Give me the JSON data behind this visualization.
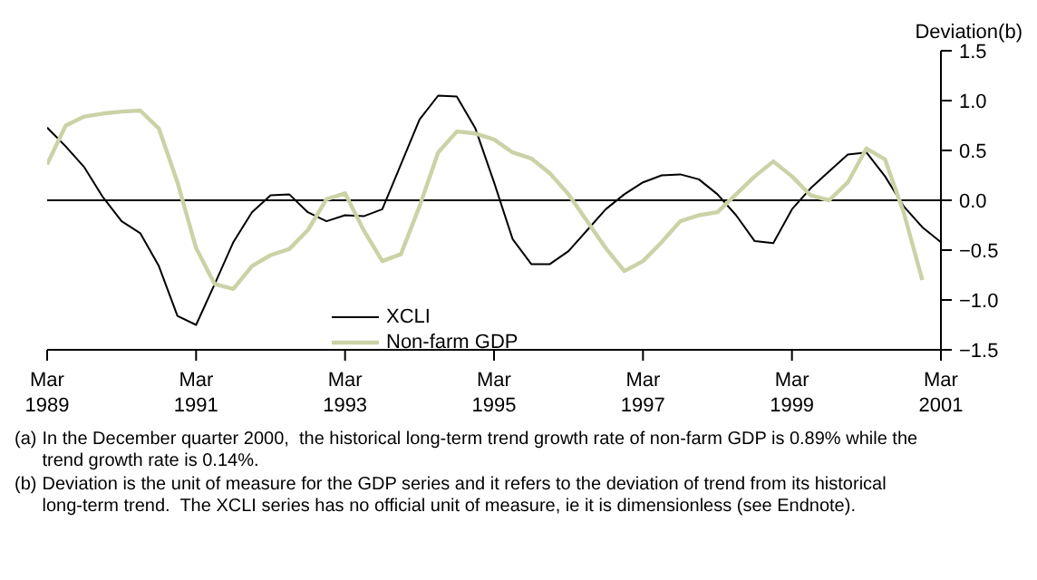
{
  "chart_data": {
    "type": "line",
    "ylabel": "Deviation(b)",
    "x": [
      "1989-03",
      "1989-06",
      "1989-09",
      "1989-12",
      "1990-03",
      "1990-06",
      "1990-09",
      "1990-12",
      "1991-03",
      "1991-06",
      "1991-09",
      "1991-12",
      "1992-03",
      "1992-06",
      "1992-09",
      "1992-12",
      "1993-03",
      "1993-06",
      "1993-09",
      "1993-12",
      "1994-03",
      "1994-06",
      "1994-09",
      "1994-12",
      "1995-03",
      "1995-06",
      "1995-09",
      "1995-12",
      "1996-03",
      "1996-06",
      "1996-09",
      "1996-12",
      "1997-03",
      "1997-06",
      "1997-09",
      "1997-12",
      "1998-03",
      "1998-06",
      "1998-09",
      "1998-12",
      "1999-03",
      "1999-06",
      "1999-09",
      "1999-12",
      "2000-03",
      "2000-06",
      "2000-09",
      "2000-12",
      "2001-03"
    ],
    "series": [
      {
        "name": "XCLI",
        "color": "#000000",
        "values": [
          0.73,
          0.54,
          0.33,
          0.03,
          -0.21,
          -0.33,
          -0.66,
          -1.16,
          -1.25,
          -0.84,
          -0.42,
          -0.12,
          0.05,
          0.06,
          -0.12,
          -0.21,
          -0.15,
          -0.16,
          -0.09,
          0.36,
          0.81,
          1.05,
          1.04,
          0.72,
          0.18,
          -0.39,
          -0.64,
          -0.64,
          -0.51,
          -0.3,
          -0.09,
          0.06,
          0.18,
          0.25,
          0.26,
          0.21,
          0.06,
          -0.15,
          -0.41,
          -0.43,
          -0.09,
          0.12,
          0.29,
          0.46,
          0.48,
          0.24,
          -0.06,
          -0.27,
          -0.42
        ]
      },
      {
        "name": "Non-farm GDP",
        "color": "#cbd2a6",
        "values": [
          0.36,
          0.75,
          0.84,
          0.87,
          0.89,
          0.9,
          0.72,
          0.18,
          -0.48,
          -0.84,
          -0.89,
          -0.66,
          -0.55,
          -0.49,
          -0.3,
          0.01,
          0.07,
          -0.3,
          -0.61,
          -0.54,
          -0.06,
          0.48,
          0.69,
          0.67,
          0.61,
          0.48,
          0.42,
          0.27,
          0.06,
          -0.21,
          -0.48,
          -0.71,
          -0.61,
          -0.42,
          -0.21,
          -0.15,
          -0.12,
          0.06,
          0.24,
          0.39,
          0.24,
          0.05,
          0.0,
          0.18,
          0.52,
          0.41,
          -0.12,
          -0.8,
          null
        ]
      }
    ],
    "xlim": [
      "1989-03",
      "2001-03"
    ],
    "xticks": [
      {
        "value": "1989-03",
        "label": "Mar\n1989"
      },
      {
        "value": "1991-03",
        "label": "Mar\n1991"
      },
      {
        "value": "1993-03",
        "label": "Mar\n1993"
      },
      {
        "value": "1995-03",
        "label": "Mar\n1995"
      },
      {
        "value": "1997-03",
        "label": "Mar\n1997"
      },
      {
        "value": "1999-03",
        "label": "Mar\n1999"
      },
      {
        "value": "2001-03",
        "label": "Mar\n2001"
      }
    ],
    "ylim": [
      -1.5,
      1.5
    ],
    "yticks": [
      {
        "value": -1.5,
        "label": "−1.5"
      },
      {
        "value": -1,
        "label": "−1.0"
      },
      {
        "value": -0.5,
        "label": "−0.5"
      },
      {
        "value": 0,
        "label": "0.0"
      },
      {
        "value": 0.5,
        "label": "0.5"
      },
      {
        "value": 1,
        "label": "1.0"
      },
      {
        "value": 1.5,
        "label": "1.5"
      }
    ],
    "ref_lines": [
      {
        "axis": "y",
        "value": 0,
        "color": "#000000"
      }
    ],
    "legend": "bottom",
    "marker": "none",
    "line_style": "solid",
    "annotations": [
      "(a) In the December quarter 2000,  the historical long-term trend growth rate of non-farm GDP is 0.89% while the trend growth rate is 0.14%.",
      "(b) Deviation is the unit of measure for the GDP series and it refers to the deviation of trend from its historical long-term trend.  The XCLI series has no official unit of measure, ie it is dimensionless (see Endnote)."
    ]
  }
}
